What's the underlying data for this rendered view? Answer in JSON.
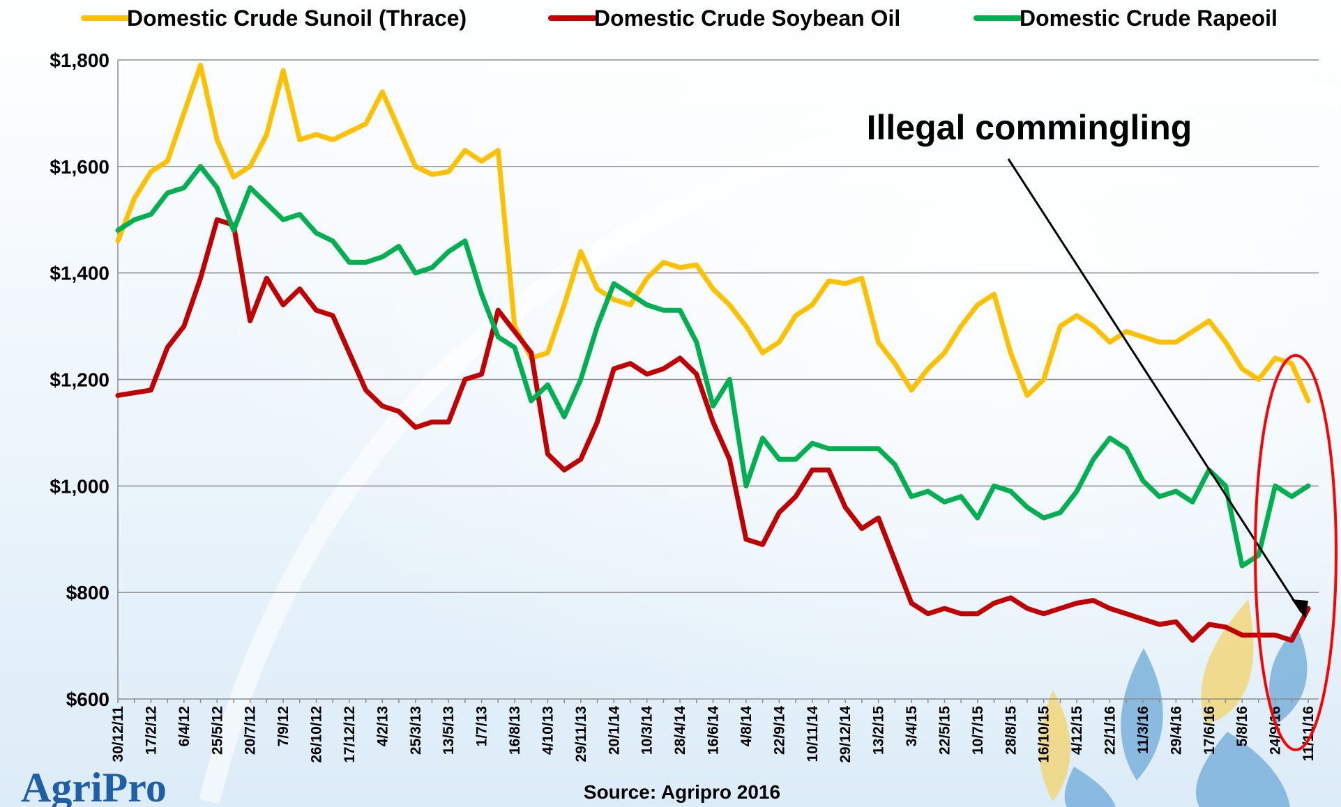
{
  "chart_data": {
    "type": "line",
    "legend": "top",
    "grid": true,
    "annotation": "Illegal commingling",
    "source": "Source: Agripro 2016",
    "logo": "AgriPro",
    "categories": [
      "30/12/11",
      null,
      "17/2/12",
      null,
      "6/4/12",
      null,
      "25/5/12",
      null,
      "20/7/12",
      null,
      "7/9/12",
      null,
      "26/10/12",
      null,
      "17/12/12",
      null,
      "4/2/13",
      null,
      "25/3/13",
      null,
      "13/5/13",
      null,
      "1/7/13",
      null,
      "16/8/13",
      null,
      "4/10/13",
      null,
      "29/11/13",
      null,
      "20/1/14",
      null,
      "10/3/14",
      null,
      "28/4/14",
      null,
      "16/6/14",
      null,
      "4/8/14",
      null,
      "22/9/14",
      null,
      "10/11/14",
      null,
      "29/12/14",
      null,
      "13/2/15",
      null,
      "3/4/15",
      null,
      "22/5/15",
      null,
      "10/7/15",
      null,
      "28/8/15",
      null,
      "16/10/15",
      null,
      "4/12/15",
      null,
      "22/1/16",
      null,
      "11/3/16",
      null,
      "29/4/16",
      null,
      "17/6/16",
      null,
      "5/8/16",
      null,
      "24/9/16",
      null,
      "11/11/16"
    ],
    "ylim": [
      600,
      1800
    ],
    "yticks": [
      {
        "value": 600,
        "label": "$600"
      },
      {
        "value": 800,
        "label": "$800"
      },
      {
        "value": 1000,
        "label": "$1,000"
      },
      {
        "value": 1200,
        "label": "$1,200"
      },
      {
        "value": 1400,
        "label": "$1,400"
      },
      {
        "value": 1600,
        "label": "$1,600"
      },
      {
        "value": 1800,
        "label": "$1,800"
      }
    ],
    "series": [
      {
        "name": "Domestic Crude Sunoil (Thrace)",
        "color": "#FFC000",
        "values": [
          1460,
          1540,
          1590,
          1610,
          1700,
          1790,
          1650,
          1580,
          1600,
          1660,
          1780,
          1650,
          1660,
          1650,
          1665,
          1680,
          1740,
          1670,
          1600,
          1585,
          1590,
          1630,
          1610,
          1630,
          1300,
          1240,
          1250,
          1340,
          1440,
          1370,
          1350,
          1340,
          1390,
          1420,
          1410,
          1415,
          1370,
          1340,
          1300,
          1250,
          1270,
          1320,
          1340,
          1385,
          1380,
          1390,
          1270,
          1230,
          1180,
          1220,
          1250,
          1300,
          1340,
          1360,
          1250,
          1170,
          1200,
          1300,
          1320,
          1300,
          1270,
          1290,
          1280,
          1270,
          1270,
          1290,
          1310,
          1270,
          1220,
          1200,
          1240,
          1230,
          1160
        ]
      },
      {
        "name": "Domestic Crude Soybean Oil",
        "color": "#C00000",
        "values": [
          1170,
          1175,
          1180,
          1260,
          1300,
          1390,
          1500,
          1490,
          1310,
          1390,
          1340,
          1370,
          1330,
          1320,
          1250,
          1180,
          1150,
          1140,
          1110,
          1120,
          1120,
          1200,
          1210,
          1330,
          1290,
          1250,
          1060,
          1030,
          1050,
          1120,
          1220,
          1230,
          1210,
          1220,
          1240,
          1210,
          1120,
          1050,
          900,
          890,
          950,
          980,
          1030,
          1030,
          960,
          920,
          940,
          860,
          780,
          760,
          770,
          760,
          760,
          780,
          790,
          770,
          760,
          770,
          780,
          785,
          770,
          760,
          750,
          740,
          745,
          710,
          740,
          735,
          720,
          720,
          720,
          710,
          770
        ]
      },
      {
        "name": "Domestic Crude Rapeoil",
        "color": "#00B050",
        "values": [
          1480,
          1500,
          1510,
          1550,
          1560,
          1600,
          1560,
          1480,
          1560,
          1530,
          1500,
          1510,
          1475,
          1460,
          1420,
          1420,
          1430,
          1450,
          1400,
          1410,
          1440,
          1460,
          1360,
          1280,
          1260,
          1160,
          1190,
          1130,
          1200,
          1300,
          1380,
          1360,
          1340,
          1330,
          1330,
          1270,
          1150,
          1200,
          1000,
          1090,
          1050,
          1050,
          1080,
          1070,
          1070,
          1070,
          1070,
          1040,
          980,
          990,
          970,
          980,
          940,
          1000,
          990,
          960,
          940,
          950,
          990,
          1050,
          1090,
          1070,
          1010,
          980,
          990,
          970,
          1030,
          1000,
          850,
          870,
          1000,
          980,
          1000
        ]
      }
    ]
  }
}
